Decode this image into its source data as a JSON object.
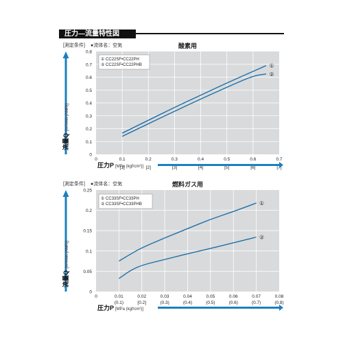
{
  "page": {
    "title": "圧力—流量特性図"
  },
  "colors": {
    "accent": "#1b7fbf",
    "line": "#1f6fa6",
    "panel": "#d8dadc",
    "grid": "#ffffff",
    "header": "#111111"
  },
  "chart_data": [
    {
      "type": "line",
      "conditions_label": "[測定条件]",
      "fluid_label": "●流体名：空気",
      "title": "酸素用",
      "xlabel": "圧力P",
      "xunit": "[MPa (kgf/cm²)]",
      "ylabel": "流量Q",
      "yunit": "[m³/min (ANR)]",
      "xlim": [
        0,
        0.7
      ],
      "ylim": [
        0,
        0.8
      ],
      "grid": true,
      "legend_position": "top-left",
      "xticks": [
        "0",
        "0.1",
        "0.2",
        "0.3",
        "0.4",
        "0.5",
        "0.6",
        "0.7"
      ],
      "xticks_sub": [
        "",
        "[1]",
        "[2]",
        "[3]",
        "[4]",
        "[5]",
        "[6]",
        "[7]"
      ],
      "yticks": [
        "0",
        "0.1",
        "0.2",
        "0.3",
        "0.4",
        "0.5",
        "0.6",
        "0.7",
        "0.8"
      ],
      "legend": [
        "① CC22SF•CC22PH",
        "② CC22SF•CC22PHB"
      ],
      "series": [
        {
          "name": "①",
          "x": [
            0.1,
            0.2,
            0.3,
            0.4,
            0.5,
            0.6,
            0.65
          ],
          "y": [
            0.165,
            0.265,
            0.365,
            0.46,
            0.555,
            0.645,
            0.69
          ]
        },
        {
          "name": "②",
          "x": [
            0.1,
            0.2,
            0.3,
            0.4,
            0.5,
            0.6,
            0.65
          ],
          "y": [
            0.14,
            0.238,
            0.335,
            0.43,
            0.522,
            0.61,
            0.625
          ]
        }
      ]
    },
    {
      "type": "line",
      "conditions_label": "[測定条件]",
      "fluid_label": "●流体名：空気",
      "title": "燃料ガス用",
      "xlabel": "圧力P",
      "xunit": "[MPa (kgf/cm²)]",
      "ylabel": "流量Q",
      "yunit": "[m³/min (ANR)]",
      "xlim": [
        0,
        0.08
      ],
      "ylim": [
        0,
        0.25
      ],
      "grid": true,
      "legend_position": "top-left",
      "xticks": [
        "0",
        "0.01",
        "0.02",
        "0.03",
        "0.04",
        "0.05",
        "0.06",
        "0.07",
        "0.08"
      ],
      "xticks_sub": [
        "",
        "(0.1)",
        "[0.2]",
        "(0.3)",
        "(0.4)",
        "(0.5)",
        "(0.6)",
        "(0.7)",
        "(0.8)"
      ],
      "yticks": [
        "0",
        "0.05",
        "0.1",
        "0.15",
        "0.2",
        "0.25"
      ],
      "legend": [
        "① CC33SF•CC33PH",
        "② CC33SF•CC33PHB"
      ],
      "series": [
        {
          "name": "①",
          "x": [
            0.01,
            0.015,
            0.02,
            0.03,
            0.04,
            0.05,
            0.06,
            0.07
          ],
          "y": [
            0.075,
            0.092,
            0.108,
            0.132,
            0.155,
            0.178,
            0.197,
            0.218
          ]
        },
        {
          "name": "②",
          "x": [
            0.01,
            0.015,
            0.02,
            0.03,
            0.04,
            0.05,
            0.06,
            0.07
          ],
          "y": [
            0.032,
            0.052,
            0.065,
            0.079,
            0.093,
            0.106,
            0.12,
            0.134
          ]
        }
      ]
    }
  ]
}
